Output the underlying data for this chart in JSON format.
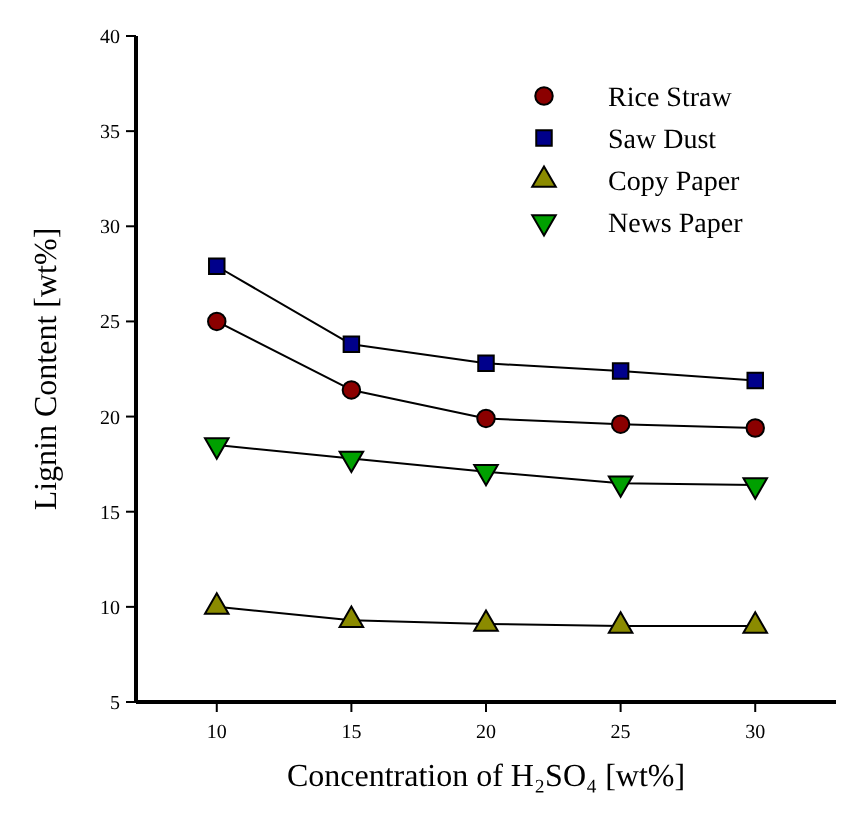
{
  "chart_data": {
    "type": "line",
    "xlabel": "Concentration of H₂SO₄ [wt%]",
    "ylabel": "Lignin Content [wt%]",
    "x": [
      10,
      15,
      20,
      25,
      30
    ],
    "xlim": [
      7,
      33
    ],
    "xticks": [
      10,
      15,
      20,
      25,
      30
    ],
    "ylim": [
      5,
      40
    ],
    "yticks": [
      5,
      10,
      15,
      20,
      25,
      30,
      35,
      40
    ],
    "legend": "top right",
    "grid": false,
    "line_style": "solid",
    "series": [
      {
        "name": "Rice Straw",
        "color": "#8b0000",
        "marker": "circle",
        "values": [
          25.0,
          21.4,
          19.9,
          19.6,
          19.4
        ]
      },
      {
        "name": "Saw Dust",
        "color": "#00008b",
        "marker": "square",
        "values": [
          27.9,
          23.8,
          22.8,
          22.4,
          21.9
        ]
      },
      {
        "name": "Copy Paper",
        "color": "#8b8b00",
        "marker": "triangle",
        "values": [
          10.0,
          9.3,
          9.1,
          9.0,
          9.0
        ]
      },
      {
        "name": "News Paper",
        "color": "#00a000",
        "marker": "triangle-down",
        "values": [
          18.5,
          17.8,
          17.1,
          16.5,
          16.4
        ]
      }
    ]
  }
}
